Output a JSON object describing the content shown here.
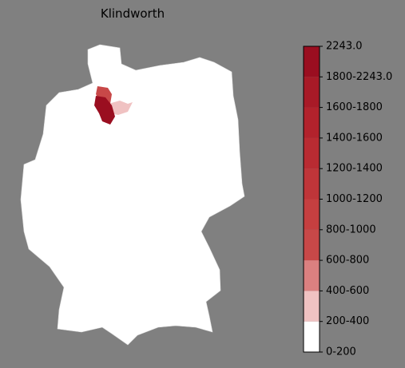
{
  "title": "Klindworth",
  "colorbar": {
    "labels": [
      "0-200",
      "200-400",
      "400-600",
      "600-800",
      "800-1000",
      "1000-1200",
      "1200-1400",
      "1400-1600",
      "1600-1800",
      "1800-2243.0",
      "2243.0"
    ],
    "colors": [
      "#ffffff",
      "#f0c2c2",
      "#db8080",
      "#c84848",
      "#c53f40",
      "#bf3539",
      "#b92b32",
      "#b2222c",
      "#a81a27",
      "#9a0e20"
    ]
  }
}
